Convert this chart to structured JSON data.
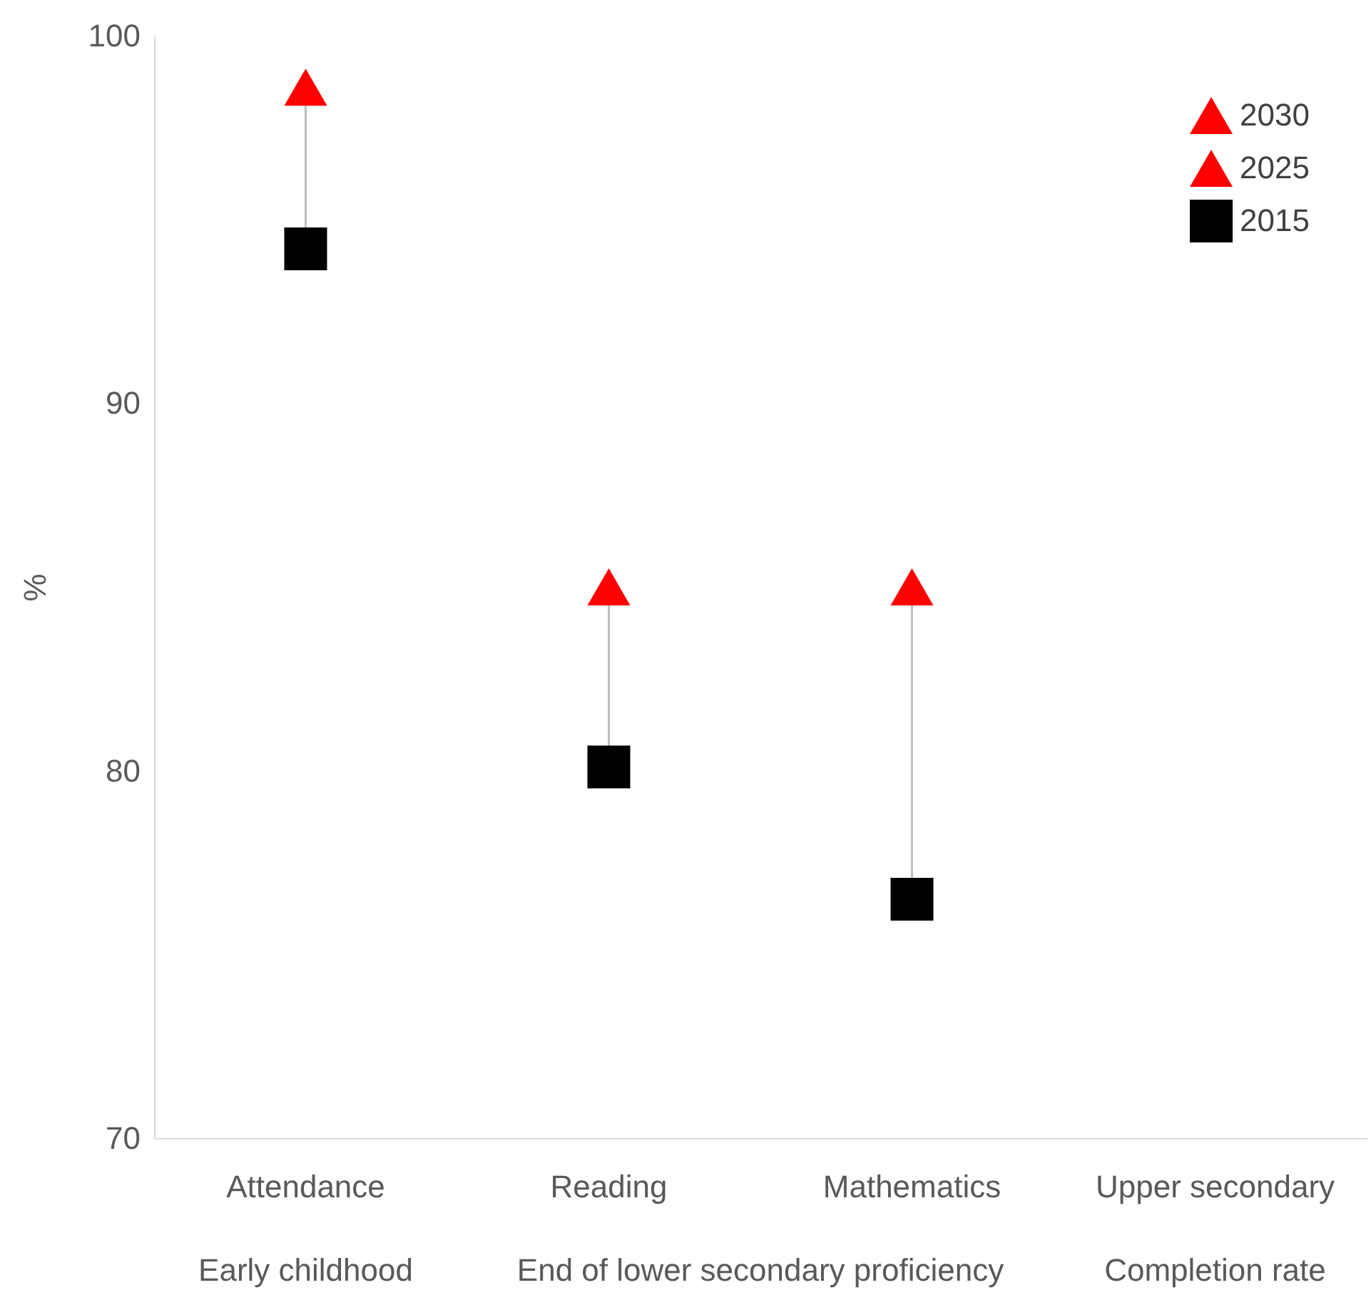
{
  "chart_data": {
    "type": "scatter",
    "ylabel": "%",
    "categories": [
      "Attendance",
      "Reading",
      "Mathematics",
      "Upper secondary"
    ],
    "ylim": [
      70,
      100
    ],
    "yticks": [
      70,
      80,
      90,
      100
    ],
    "grid": false,
    "legend": "top right",
    "annotations": [
      "Early childhood",
      "End of lower secondary proficiency",
      "Completion rate"
    ],
    "series": [
      {
        "name": "2030",
        "color": "#ff0000",
        "marker": "triangle",
        "values": [
          98.6,
          85.0,
          85.0,
          null
        ]
      },
      {
        "name": "2025",
        "color": "#ff0000",
        "marker": "triangle",
        "values": [
          null,
          null,
          null,
          null
        ]
      },
      {
        "name": "2015",
        "color": "#000000",
        "marker": "square",
        "values": [
          94.2,
          80.1,
          76.5,
          null
        ]
      }
    ]
  }
}
